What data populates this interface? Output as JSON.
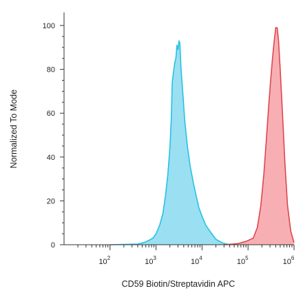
{
  "chart_data": {
    "type": "area",
    "title": "",
    "xlabel": "CD59 Biotin/Streptavidin APC",
    "ylabel": "Normalized To Mode",
    "x_scale": "log",
    "xlim": [
      10,
      1000000
    ],
    "ylim": [
      0,
      100
    ],
    "grid": false,
    "legend": "none",
    "yticks": [
      0,
      20,
      40,
      60,
      80,
      100
    ],
    "xticks": [
      {
        "base": "10",
        "exp": "2",
        "value": 100
      },
      {
        "base": "10",
        "exp": "3",
        "value": 1000
      },
      {
        "base": "10",
        "exp": "4",
        "value": 10000
      },
      {
        "base": "10",
        "exp": "5",
        "value": 100000
      },
      {
        "base": "10",
        "exp": "6",
        "value": 1000000
      }
    ],
    "series": [
      {
        "color": "#27c1e4",
        "fill": "#8fdcf1",
        "points": [
          [
            100,
            0
          ],
          [
            400,
            0.3
          ],
          [
            550,
            1
          ],
          [
            700,
            2
          ],
          [
            850,
            3
          ],
          [
            1000,
            5
          ],
          [
            1200,
            9
          ],
          [
            1400,
            14
          ],
          [
            1600,
            22
          ],
          [
            1800,
            32
          ],
          [
            2000,
            44
          ],
          [
            2150,
            58
          ],
          [
            2250,
            74
          ],
          [
            2400,
            79
          ],
          [
            2550,
            83
          ],
          [
            2700,
            85
          ],
          [
            2850,
            91
          ],
          [
            3000,
            89
          ],
          [
            3150,
            93
          ],
          [
            3300,
            92
          ],
          [
            3500,
            80
          ],
          [
            3800,
            70
          ],
          [
            4200,
            57
          ],
          [
            4800,
            45
          ],
          [
            5500,
            36
          ],
          [
            6500,
            28
          ],
          [
            7500,
            22
          ],
          [
            8500,
            17
          ],
          [
            10000,
            13
          ],
          [
            12000,
            9
          ],
          [
            15000,
            6
          ],
          [
            20000,
            2.5
          ],
          [
            28000,
            0.8
          ],
          [
            40000,
            0
          ]
        ]
      },
      {
        "color": "#e0454c",
        "fill": "#f6a6ab",
        "points": [
          [
            30000,
            0
          ],
          [
            60000,
            0.5
          ],
          [
            90000,
            1.5
          ],
          [
            130000,
            3
          ],
          [
            160000,
            8
          ],
          [
            190000,
            18
          ],
          [
            220000,
            32
          ],
          [
            250000,
            48
          ],
          [
            280000,
            63
          ],
          [
            310000,
            75
          ],
          [
            340000,
            85
          ],
          [
            370000,
            93
          ],
          [
            400000,
            99
          ],
          [
            430000,
            99
          ],
          [
            460000,
            93
          ],
          [
            500000,
            80
          ],
          [
            560000,
            60
          ],
          [
            630000,
            38
          ],
          [
            720000,
            18
          ],
          [
            850000,
            6
          ],
          [
            1000000,
            1
          ]
        ]
      }
    ]
  }
}
